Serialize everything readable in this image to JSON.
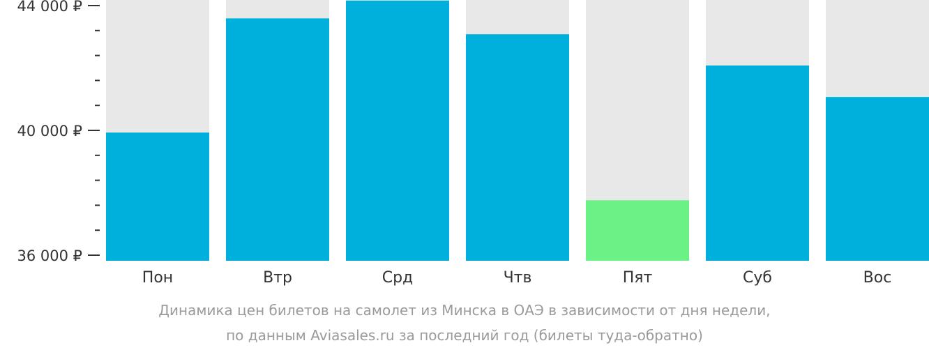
{
  "chart_data": {
    "type": "bar",
    "categories": [
      "Пон",
      "Втр",
      "Срд",
      "Чтв",
      "Пят",
      "Суб",
      "Вос"
    ],
    "values": [
      39930,
      43590,
      44160,
      43080,
      37760,
      42080,
      41070
    ],
    "ylim": [
      36000,
      44000
    ],
    "yticks": [
      {
        "value": 44000,
        "label": "44 000 ₽"
      },
      {
        "value": 40000,
        "label": "40 000 ₽"
      },
      {
        "value": 36000,
        "label": "36 000 ₽"
      }
    ],
    "minor_tick_step": 800,
    "highlight_index": 4,
    "colors": {
      "bar": "#00b0dc",
      "highlight": "#6af287",
      "background_bar": "#e8e8e8",
      "axis": "#333333"
    },
    "caption": [
      "Динамика цен билетов на самолет из Минска в ОАЭ в зависимости от дня недели,",
      "по данным Aviasales.ru за последний год (билеты туда-обратно)"
    ],
    "grid": false,
    "legend": "none"
  }
}
